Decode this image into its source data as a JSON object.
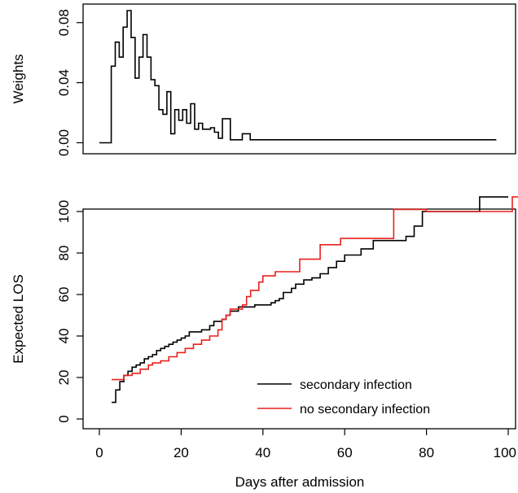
{
  "chart_data": [
    {
      "type": "line",
      "step": true,
      "title": "",
      "xlabel": "",
      "ylabel": "Weights",
      "xlim": [
        0,
        103
      ],
      "ylim": [
        -0.003,
        0.088
      ],
      "x_ticks_shown": false,
      "y_ticks": [
        0.0,
        0.04,
        0.08
      ],
      "y_tick_labels": [
        "0.00",
        "0.04",
        "0.08"
      ],
      "box": true,
      "grid": false,
      "series": [
        {
          "color": "#000000",
          "points": [
            [
              0,
              0.0
            ],
            [
              3,
              0.0
            ],
            [
              3,
              0.051
            ],
            [
              4,
              0.067
            ],
            [
              5,
              0.057
            ],
            [
              6,
              0.077
            ],
            [
              7,
              0.088
            ],
            [
              8,
              0.07
            ],
            [
              9,
              0.043
            ],
            [
              10,
              0.057
            ],
            [
              11,
              0.072
            ],
            [
              12,
              0.057
            ],
            [
              13,
              0.042
            ],
            [
              14,
              0.038
            ],
            [
              15,
              0.022
            ],
            [
              16,
              0.019
            ],
            [
              17,
              0.034
            ],
            [
              18,
              0.006
            ],
            [
              19,
              0.022
            ],
            [
              20,
              0.015
            ],
            [
              21,
              0.022
            ],
            [
              22,
              0.013
            ],
            [
              23,
              0.026
            ],
            [
              24,
              0.009
            ],
            [
              25,
              0.013
            ],
            [
              26,
              0.009
            ],
            [
              28,
              0.01
            ],
            [
              29,
              0.007
            ],
            [
              30,
              0.003
            ],
            [
              31,
              0.016
            ],
            [
              33,
              0.002
            ],
            [
              36,
              0.006
            ],
            [
              38,
              0.002
            ],
            [
              100,
              0.002
            ]
          ]
        }
      ]
    },
    {
      "type": "line",
      "step": true,
      "title": "",
      "xlabel": "Days after admission",
      "ylabel": "Expected LOS",
      "xlim": [
        -4,
        103
      ],
      "ylim": [
        -5,
        112
      ],
      "x_ticks": [
        0,
        20,
        40,
        60,
        80,
        100
      ],
      "x_tick_labels": [
        "0",
        "20",
        "40",
        "60",
        "80",
        "100"
      ],
      "y_ticks": [
        0,
        20,
        40,
        60,
        80,
        100
      ],
      "y_tick_labels": [
        "0",
        "20",
        "40",
        "60",
        "80",
        "100"
      ],
      "box": true,
      "grid": false,
      "legend": {
        "placement": "bottom-right",
        "entries": [
          {
            "label": "secondary infection",
            "color": "#000000"
          },
          {
            "label": "no secondary infection",
            "color": "#e8211d"
          }
        ]
      },
      "series": [
        {
          "name": "secondary infection",
          "color": "#000000",
          "points": [
            [
              3,
              8
            ],
            [
              4,
              14
            ],
            [
              5,
              18
            ],
            [
              6,
              21
            ],
            [
              7,
              23
            ],
            [
              8,
              25
            ],
            [
              9,
              26
            ],
            [
              10,
              27
            ],
            [
              11,
              29
            ],
            [
              12,
              30
            ],
            [
              13,
              31
            ],
            [
              14,
              33
            ],
            [
              15,
              34
            ],
            [
              16,
              35
            ],
            [
              17,
              36
            ],
            [
              18,
              37
            ],
            [
              19,
              38
            ],
            [
              20,
              39
            ],
            [
              21,
              40
            ],
            [
              22,
              42
            ],
            [
              25,
              43
            ],
            [
              27,
              45
            ],
            [
              28,
              47
            ],
            [
              30,
              48
            ],
            [
              31,
              50
            ],
            [
              32,
              52
            ],
            [
              34,
              54
            ],
            [
              38,
              55
            ],
            [
              42,
              56
            ],
            [
              43,
              57
            ],
            [
              44,
              58
            ],
            [
              45,
              61
            ],
            [
              47,
              63
            ],
            [
              48,
              65
            ],
            [
              50,
              67
            ],
            [
              52,
              68
            ],
            [
              54,
              70
            ],
            [
              56,
              73
            ],
            [
              58,
              76
            ],
            [
              60,
              79
            ],
            [
              64,
              82
            ],
            [
              67,
              86
            ],
            [
              75,
              88
            ],
            [
              77,
              93
            ],
            [
              79,
              100
            ],
            [
              93,
              107
            ],
            [
              100,
              107
            ]
          ]
        },
        {
          "name": "no secondary infection",
          "color": "#e8211d",
          "points": [
            [
              3,
              19
            ],
            [
              6,
              21
            ],
            [
              8,
              22
            ],
            [
              10,
              24
            ],
            [
              12,
              26
            ],
            [
              13,
              27
            ],
            [
              15,
              28
            ],
            [
              17,
              30
            ],
            [
              19,
              32
            ],
            [
              21,
              34
            ],
            [
              23,
              36
            ],
            [
              25,
              38
            ],
            [
              27,
              40
            ],
            [
              29,
              43
            ],
            [
              30,
              48
            ],
            [
              31,
              50
            ],
            [
              32,
              53
            ],
            [
              35,
              55
            ],
            [
              36,
              59
            ],
            [
              37,
              62
            ],
            [
              39,
              66
            ],
            [
              40,
              69
            ],
            [
              43,
              71
            ],
            [
              49,
              77
            ],
            [
              54,
              84
            ],
            [
              59,
              87
            ],
            [
              72,
              101
            ],
            [
              79,
              101
            ],
            [
              80,
              100
            ],
            [
              98,
              100
            ],
            [
              101,
              107
            ],
            [
              103,
              107
            ]
          ]
        }
      ]
    }
  ]
}
